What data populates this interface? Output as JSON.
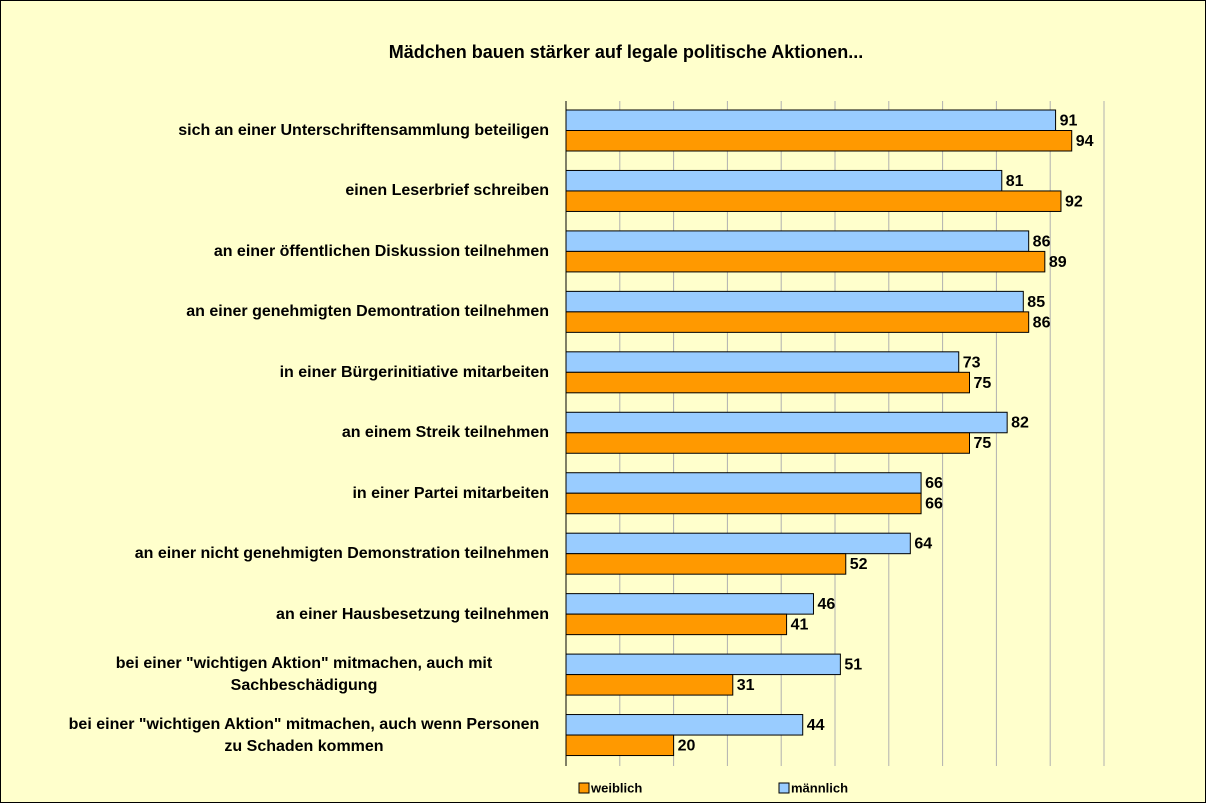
{
  "chart_data": {
    "type": "hbar",
    "title": "Mädchen bauen stärker auf legale politische Aktionen...",
    "categories": [
      "sich an einer Unterschriftensammlung beteiligen",
      "einen Leserbrief schreiben",
      "an einer öffentlichen Diskussion teilnehmen",
      "an einer genehmigten Demontration teilnehmen",
      "in einer Bürgerinitiative mitarbeiten",
      "an einem Streik teilnehmen",
      "in einer Partei mitarbeiten",
      "an einer nicht genehmigten Demonstration teilnehmen",
      "an einer Hausbesetzung teilnehmen",
      "bei einer \"wichtigen Aktion\" mitmachen, auch mit Sachbeschädigung",
      "bei einer \"wichtigen Aktion\" mitmachen, auch wenn Personen zu Schaden kommen"
    ],
    "series": [
      {
        "name": "weiblich",
        "color": "#ff9900",
        "values": [
          94,
          92,
          89,
          86,
          75,
          75,
          66,
          52,
          41,
          31,
          20
        ]
      },
      {
        "name": "männlich",
        "color": "#99ccff",
        "values": [
          91,
          81,
          86,
          85,
          73,
          82,
          66,
          64,
          46,
          51,
          44
        ]
      }
    ],
    "xlim": [
      0,
      100
    ],
    "xticks": [
      0,
      10,
      20,
      30,
      40,
      50,
      60,
      70,
      80,
      90,
      100
    ],
    "grid": true,
    "legend": "bottom"
  }
}
